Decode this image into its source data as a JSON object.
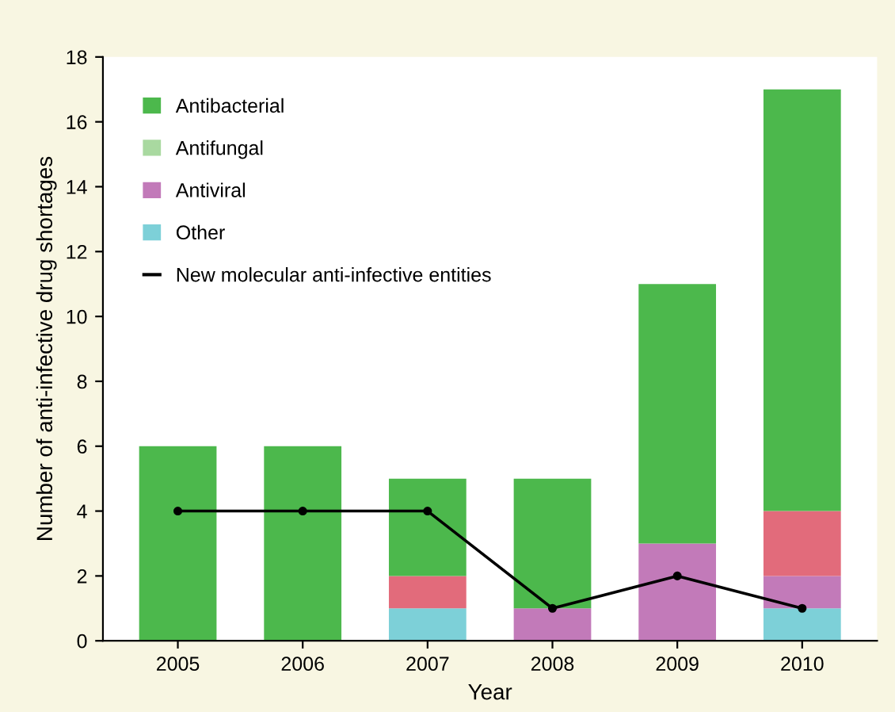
{
  "chart_data": {
    "type": "bar",
    "stacked": true,
    "xlabel": "Year",
    "ylabel": "Number of anti-infective drug shortages",
    "categories": [
      "2005",
      "2006",
      "2007",
      "2008",
      "2009",
      "2010"
    ],
    "series": [
      {
        "name": "Other",
        "color": "#7dd0d8",
        "values": [
          0,
          0,
          1,
          0,
          0,
          1
        ]
      },
      {
        "name": "Antiviral",
        "color": "#c27ab9",
        "values": [
          0,
          0,
          0,
          1,
          3,
          1
        ]
      },
      {
        "color": "#e26b7b",
        "values": [
          0,
          0,
          1,
          0,
          0,
          2
        ]
      },
      {
        "name": "Antifungal",
        "color": "#a9d9a0",
        "values": [
          0,
          0,
          0,
          0,
          0,
          0
        ]
      },
      {
        "name": "Antibacterial",
        "color": "#4cb84c",
        "values": [
          6,
          6,
          3,
          4,
          8,
          13
        ]
      },
      {
        "name": "New molecular anti-infective entities",
        "type": "line",
        "color": "#000000",
        "marker": "circle",
        "values": [
          4,
          4,
          4,
          1,
          2,
          1
        ]
      }
    ],
    "ylim": [
      0,
      18
    ],
    "yticks": [
      0,
      2,
      4,
      6,
      8,
      10,
      12,
      14,
      16,
      18
    ],
    "grid": false,
    "legend": "top left"
  }
}
